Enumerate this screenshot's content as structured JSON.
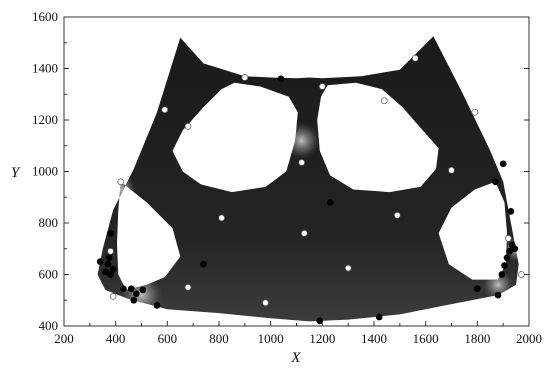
{
  "chart_data": {
    "type": "scatter",
    "title": "",
    "xlabel": "X",
    "ylabel": "Y",
    "xlim": [
      200,
      2000
    ],
    "ylim": [
      400,
      1600
    ],
    "xticks": [
      200,
      400,
      600,
      800,
      1000,
      1200,
      1400,
      1600,
      1800,
      2000
    ],
    "yticks": [
      400,
      600,
      800,
      1000,
      1200,
      1400,
      1600
    ],
    "xtick_labels": [
      "200",
      "400",
      "600",
      "800",
      "1000",
      "1200",
      "1400",
      "1600",
      "1800",
      "2000"
    ],
    "ytick_labels": [
      "400",
      "600",
      "800",
      "1000",
      "1200",
      "1400",
      "1600"
    ],
    "grid": false,
    "legend": "none",
    "colors": {
      "field_dark": "#141414",
      "field_mid": "#3a3a3a",
      "field_light": "#bdbdbd",
      "marker_black": "#000000",
      "marker_white": "#ffffff"
    },
    "domain": {
      "outer": [
        [
          650,
          1520
        ],
        [
          740,
          1420
        ],
        [
          900,
          1370
        ],
        [
          1000,
          1365
        ],
        [
          1100,
          1362
        ],
        [
          1150,
          1365
        ],
        [
          1200,
          1362
        ],
        [
          1350,
          1370
        ],
        [
          1500,
          1395
        ],
        [
          1630,
          1525
        ],
        [
          1740,
          1310
        ],
        [
          1850,
          1080
        ],
        [
          1900,
          960
        ],
        [
          1930,
          800
        ],
        [
          1960,
          640
        ],
        [
          1950,
          560
        ],
        [
          1880,
          520
        ],
        [
          1700,
          485
        ],
        [
          1500,
          445
        ],
        [
          1300,
          425
        ],
        [
          1150,
          418
        ],
        [
          1000,
          430
        ],
        [
          800,
          450
        ],
        [
          600,
          465
        ],
        [
          450,
          505
        ],
        [
          360,
          540
        ],
        [
          330,
          600
        ],
        [
          350,
          700
        ],
        [
          390,
          850
        ],
        [
          470,
          1010
        ],
        [
          560,
          1230
        ]
      ],
      "holes": [
        [
          [
            860,
            1345
          ],
          [
            960,
            1330
          ],
          [
            1070,
            1290
          ],
          [
            1105,
            1230
          ],
          [
            1095,
            1120
          ],
          [
            1060,
            1000
          ],
          [
            980,
            940
          ],
          [
            850,
            920
          ],
          [
            730,
            950
          ],
          [
            660,
            1000
          ],
          [
            620,
            1080
          ],
          [
            660,
            1160
          ],
          [
            740,
            1250
          ],
          [
            810,
            1320
          ]
        ],
        [
          [
            1220,
            1335
          ],
          [
            1330,
            1345
          ],
          [
            1430,
            1320
          ],
          [
            1510,
            1250
          ],
          [
            1580,
            1170
          ],
          [
            1650,
            1090
          ],
          [
            1640,
            1010
          ],
          [
            1580,
            940
          ],
          [
            1460,
            920
          ],
          [
            1320,
            930
          ],
          [
            1230,
            985
          ],
          [
            1190,
            1080
          ],
          [
            1180,
            1200
          ],
          [
            1195,
            1290
          ]
        ],
        [
          [
            420,
            960
          ],
          [
            520,
            880
          ],
          [
            620,
            780
          ],
          [
            650,
            670
          ],
          [
            590,
            590
          ],
          [
            520,
            560
          ],
          [
            440,
            540
          ],
          [
            410,
            600
          ],
          [
            405,
            720
          ],
          [
            410,
            850
          ]
        ],
        [
          [
            1650,
            760
          ],
          [
            1700,
            860
          ],
          [
            1790,
            930
          ],
          [
            1870,
            960
          ],
          [
            1905,
            880
          ],
          [
            1915,
            760
          ],
          [
            1910,
            640
          ],
          [
            1880,
            580
          ],
          [
            1780,
            580
          ],
          [
            1690,
            640
          ]
        ]
      ]
    },
    "light_zones": [
      {
        "x": 500,
        "y": 520,
        "r": 80
      },
      {
        "x": 1880,
        "y": 560,
        "r": 60
      },
      {
        "x": 420,
        "y": 930,
        "r": 60
      },
      {
        "x": 1950,
        "y": 700,
        "r": 50
      },
      {
        "x": 1120,
        "y": 1120,
        "r": 70
      }
    ],
    "series": [
      {
        "marker": "white",
        "points": [
          {
            "x": 590,
            "y": 1240
          },
          {
            "x": 900,
            "y": 1365
          },
          {
            "x": 1200,
            "y": 1330
          },
          {
            "x": 1440,
            "y": 1275
          },
          {
            "x": 1560,
            "y": 1440
          },
          {
            "x": 1790,
            "y": 1230
          },
          {
            "x": 1700,
            "y": 1005
          },
          {
            "x": 1490,
            "y": 830
          },
          {
            "x": 1120,
            "y": 1035
          },
          {
            "x": 810,
            "y": 820
          },
          {
            "x": 680,
            "y": 1175
          },
          {
            "x": 420,
            "y": 960
          },
          {
            "x": 1130,
            "y": 760
          },
          {
            "x": 1300,
            "y": 625
          },
          {
            "x": 980,
            "y": 490
          },
          {
            "x": 680,
            "y": 550
          },
          {
            "x": 380,
            "y": 690
          },
          {
            "x": 390,
            "y": 515
          },
          {
            "x": 1920,
            "y": 740
          },
          {
            "x": 1970,
            "y": 600
          }
        ]
      },
      {
        "marker": "black",
        "points": [
          {
            "x": 340,
            "y": 650
          },
          {
            "x": 360,
            "y": 610
          },
          {
            "x": 370,
            "y": 640
          },
          {
            "x": 375,
            "y": 665
          },
          {
            "x": 380,
            "y": 600
          },
          {
            "x": 390,
            "y": 620
          },
          {
            "x": 380,
            "y": 760
          },
          {
            "x": 430,
            "y": 545
          },
          {
            "x": 460,
            "y": 545
          },
          {
            "x": 480,
            "y": 525
          },
          {
            "x": 505,
            "y": 540
          },
          {
            "x": 470,
            "y": 500
          },
          {
            "x": 560,
            "y": 480
          },
          {
            "x": 740,
            "y": 640
          },
          {
            "x": 1040,
            "y": 1360
          },
          {
            "x": 1230,
            "y": 880
          },
          {
            "x": 1190,
            "y": 420
          },
          {
            "x": 1420,
            "y": 435
          },
          {
            "x": 1800,
            "y": 545
          },
          {
            "x": 1880,
            "y": 520
          },
          {
            "x": 1905,
            "y": 635
          },
          {
            "x": 1915,
            "y": 665
          },
          {
            "x": 1925,
            "y": 690
          },
          {
            "x": 1935,
            "y": 715
          },
          {
            "x": 1945,
            "y": 700
          },
          {
            "x": 1895,
            "y": 600
          },
          {
            "x": 1930,
            "y": 845
          },
          {
            "x": 1870,
            "y": 960
          },
          {
            "x": 1900,
            "y": 1030
          }
        ]
      }
    ]
  }
}
